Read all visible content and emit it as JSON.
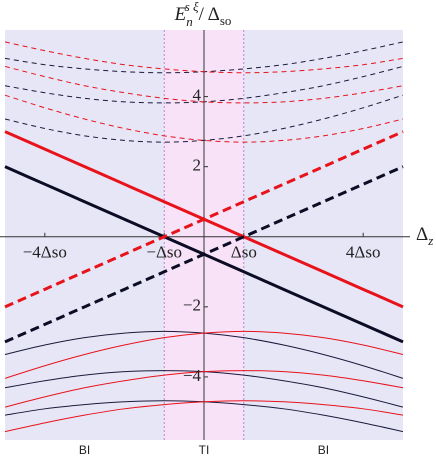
{
  "chart_data": {
    "type": "line",
    "ylabel": {
      "base": "E",
      "sub": "n",
      "sup": "s ξ",
      "rest": "/ Δ",
      "rest_sub": "so"
    },
    "xlabel": {
      "base": "Δ",
      "sub": "z"
    },
    "x": [
      -5,
      -4,
      -3,
      -2,
      -1,
      0,
      1,
      2,
      3,
      4,
      5
    ],
    "xlim": [
      -5,
      5
    ],
    "ylim": [
      -5.8,
      5.9
    ],
    "xticks": [
      {
        "value": -4,
        "label": "−4Δso"
      },
      {
        "value": -1,
        "label": "−Δso"
      },
      {
        "value": 1,
        "label": "Δso"
      },
      {
        "value": 4,
        "label": "4Δso"
      }
    ],
    "yticks": [
      {
        "value": -4,
        "label": "−4"
      },
      {
        "value": -2,
        "label": "−2"
      },
      2,
      4
    ],
    "regions": [
      {
        "label": "BI",
        "from": -5,
        "to": -1,
        "color": "#e6e6f7"
      },
      {
        "label": "TI",
        "from": -1,
        "to": 1,
        "color": "#f7e2f7"
      },
      {
        "label": "BI",
        "from": 1,
        "to": 5,
        "color": "#e6e6f7"
      }
    ],
    "series": [
      {
        "color": "#e8121a",
        "dashed": false,
        "width": 3,
        "values": [
          3,
          2.5,
          2,
          1.5,
          1,
          0.5,
          0,
          -0.5,
          -1,
          -1.5,
          -2
        ]
      },
      {
        "color": "#0c0c24",
        "dashed": false,
        "width": 3,
        "values": [
          2,
          1.5,
          1,
          0.5,
          0,
          -0.5,
          -1,
          -1.5,
          -2,
          -2.5,
          -3
        ]
      },
      {
        "color": "#e8121a",
        "dashed": true,
        "width": 3,
        "values": [
          -2,
          -1.5,
          -1,
          -0.5,
          0,
          0.5,
          1,
          1.5,
          2,
          2.5,
          3
        ]
      },
      {
        "color": "#0c0c24",
        "dashed": true,
        "width": 3,
        "values": [
          -3,
          -2.5,
          -2,
          -1.5,
          -1,
          -0.5,
          0,
          0.5,
          1,
          1.5,
          2
        ]
      },
      {
        "color": "#1a1a3a",
        "dashed": true,
        "width": 1,
        "values": [
          3.36,
          3.09,
          2.88,
          2.75,
          2.7,
          2.75,
          2.88,
          3.09,
          3.36,
          3.68,
          4.04
        ]
      },
      {
        "color": "#1a1a3a",
        "dashed": true,
        "width": 1,
        "values": [
          4.31,
          4.11,
          3.95,
          3.85,
          3.82,
          3.85,
          3.95,
          4.11,
          4.31,
          4.57,
          4.86
        ]
      },
      {
        "color": "#1a1a3a",
        "dashed": true,
        "width": 1,
        "values": [
          5.09,
          4.91,
          4.79,
          4.71,
          4.68,
          4.71,
          4.79,
          4.91,
          5.09,
          5.31,
          5.56
        ]
      },
      {
        "color": "#e8121a",
        "dashed": true,
        "width": 1,
        "values": [
          4.04,
          3.68,
          3.36,
          3.09,
          2.88,
          2.75,
          2.7,
          2.75,
          2.88,
          3.09,
          3.36
        ]
      },
      {
        "color": "#e8121a",
        "dashed": true,
        "width": 1,
        "values": [
          4.86,
          4.57,
          4.31,
          4.11,
          3.95,
          3.85,
          3.82,
          3.85,
          3.95,
          4.11,
          4.31
        ]
      },
      {
        "color": "#e8121a",
        "dashed": true,
        "width": 1,
        "values": [
          5.56,
          5.31,
          5.09,
          4.91,
          4.79,
          4.71,
          4.68,
          4.71,
          4.79,
          4.91,
          5.09
        ]
      },
      {
        "color": "#1a1a3a",
        "dashed": false,
        "width": 1,
        "values": [
          -3.36,
          -3.09,
          -2.88,
          -2.75,
          -2.7,
          -2.75,
          -2.88,
          -3.09,
          -3.36,
          -3.68,
          -4.04
        ]
      },
      {
        "color": "#1a1a3a",
        "dashed": false,
        "width": 1,
        "values": [
          -4.31,
          -4.11,
          -3.95,
          -3.85,
          -3.82,
          -3.85,
          -3.95,
          -4.11,
          -4.31,
          -4.57,
          -4.86
        ]
      },
      {
        "color": "#1a1a3a",
        "dashed": false,
        "width": 1,
        "values": [
          -5.09,
          -4.91,
          -4.79,
          -4.71,
          -4.68,
          -4.71,
          -4.79,
          -4.91,
          -5.09,
          -5.31,
          -5.56
        ]
      },
      {
        "color": "#e8121a",
        "dashed": false,
        "width": 1,
        "values": [
          -4.04,
          -3.68,
          -3.36,
          -3.09,
          -2.88,
          -2.75,
          -2.7,
          -2.75,
          -2.88,
          -3.09,
          -3.36
        ]
      },
      {
        "color": "#e8121a",
        "dashed": false,
        "width": 1,
        "values": [
          -4.86,
          -4.57,
          -4.31,
          -4.11,
          -3.95,
          -3.85,
          -3.82,
          -3.85,
          -3.95,
          -4.11,
          -4.31
        ]
      },
      {
        "color": "#e8121a",
        "dashed": false,
        "width": 1,
        "values": [
          -5.56,
          -5.31,
          -5.09,
          -4.91,
          -4.79,
          -4.71,
          -4.68,
          -4.71,
          -4.79,
          -4.91,
          -5.09
        ]
      }
    ]
  }
}
